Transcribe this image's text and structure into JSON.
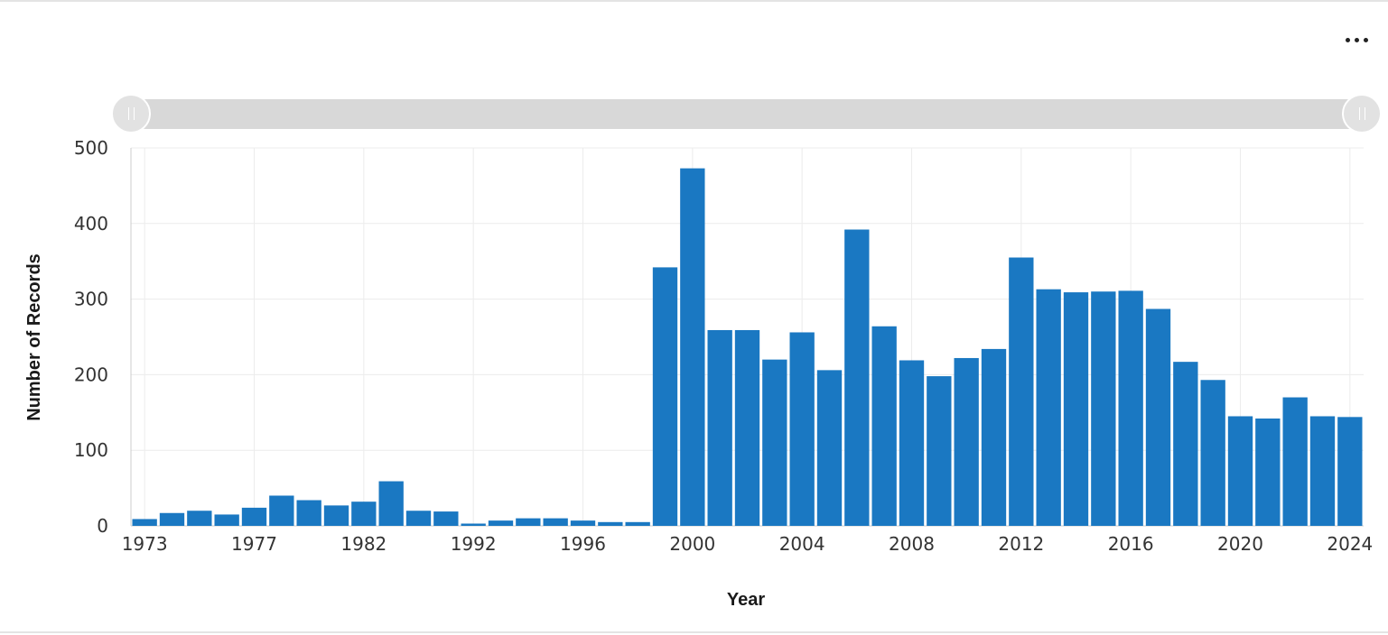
{
  "menu": {
    "icon": "more-horizontal-icon"
  },
  "range_slider": {
    "start_label": "1973",
    "end_label": "2024"
  },
  "colors": {
    "bar": "#1a78c2",
    "grid": "#ececec",
    "axis": "#cccccc"
  },
  "chart_data": {
    "type": "bar",
    "title": "",
    "xlabel": "Year",
    "ylabel": "Number of Records",
    "ylim": [
      0,
      500
    ],
    "yticks": [
      0,
      100,
      200,
      300,
      400,
      500
    ],
    "xticks": [
      "1973",
      "1977",
      "1982",
      "1992",
      "1996",
      "2000",
      "2004",
      "2008",
      "2012",
      "2016",
      "2020",
      "2024"
    ],
    "grid": true,
    "legend": "none",
    "categories": [
      "1973",
      "1974",
      "1975",
      "1976",
      "1977",
      "1978",
      "1979",
      "1980",
      "1982",
      "1983",
      "1984",
      "1985",
      "1992",
      "1993",
      "1994",
      "1995",
      "1996",
      "1997",
      "1998",
      "1999",
      "2000",
      "2001",
      "2002",
      "2003",
      "2004",
      "2005",
      "2006",
      "2007",
      "2008",
      "2009",
      "2010",
      "2011",
      "2012",
      "2013",
      "2014",
      "2015",
      "2016",
      "2017",
      "2018",
      "2019",
      "2020",
      "2021",
      "2022",
      "2023",
      "2024"
    ],
    "values": [
      9,
      17,
      20,
      15,
      24,
      40,
      34,
      27,
      32,
      59,
      20,
      19,
      3,
      7,
      10,
      10,
      7,
      5,
      5,
      342,
      473,
      259,
      259,
      220,
      256,
      206,
      392,
      264,
      219,
      198,
      222,
      234,
      355,
      313,
      309,
      310,
      311,
      287,
      217,
      193,
      145,
      142,
      170,
      145,
      144
    ]
  }
}
